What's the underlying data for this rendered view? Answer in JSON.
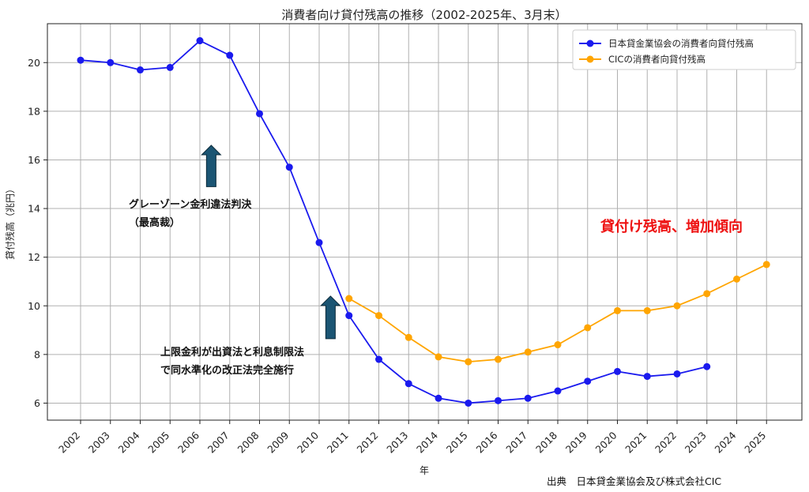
{
  "chart_data": {
    "type": "line",
    "title": "消費者向け貸付残高の推移（2002-2025年、3月末）",
    "xlabel": "年",
    "ylabel": "貸付残高（兆円）",
    "x": [
      "2002",
      "2003",
      "2004",
      "2005",
      "2006",
      "2007",
      "2008",
      "2009",
      "2010",
      "2011",
      "2012",
      "2013",
      "2014",
      "2015",
      "2016",
      "2017",
      "2018",
      "2019",
      "2020",
      "2021",
      "2022",
      "2023",
      "2024",
      "2025"
    ],
    "ylim": [
      5.3,
      21.6
    ],
    "yticks": [
      6,
      8,
      10,
      12,
      14,
      16,
      18,
      20
    ],
    "grid": true,
    "legend_position": "top-right",
    "series": [
      {
        "name": "日本貸金業協会の消費者向貸付残高",
        "color": "#1a1aee",
        "values": [
          20.1,
          20.0,
          19.7,
          19.8,
          20.9,
          20.3,
          17.9,
          15.7,
          12.6,
          9.6,
          7.8,
          6.8,
          6.2,
          6.0,
          6.1,
          6.2,
          6.5,
          6.9,
          7.3,
          7.1,
          7.2,
          7.5,
          null,
          null
        ]
      },
      {
        "name": "CICの消費者向貸付残高",
        "color": "#ffa500",
        "values": [
          null,
          null,
          null,
          null,
          null,
          null,
          null,
          null,
          null,
          10.3,
          9.6,
          8.7,
          7.9,
          7.7,
          7.8,
          8.1,
          8.4,
          9.1,
          9.8,
          9.8,
          10.0,
          10.5,
          11.1,
          11.7
        ]
      }
    ],
    "annotations": [
      {
        "lines": [
          "グレーゾーン金利違法判決",
          "（最高裁）"
        ],
        "arrow_year": "2006"
      },
      {
        "lines": [
          "上限金利が出資法と利息制限法",
          "で同水準化の改正法完全施行"
        ],
        "arrow_year": "2010"
      }
    ],
    "highlight_text": "貸付け残高、増加傾向",
    "source": "出典　日本貸金業協会及び株式会社CIC"
  },
  "colors": {
    "arrow": "#1b5573",
    "highlight": "#ee1111"
  }
}
